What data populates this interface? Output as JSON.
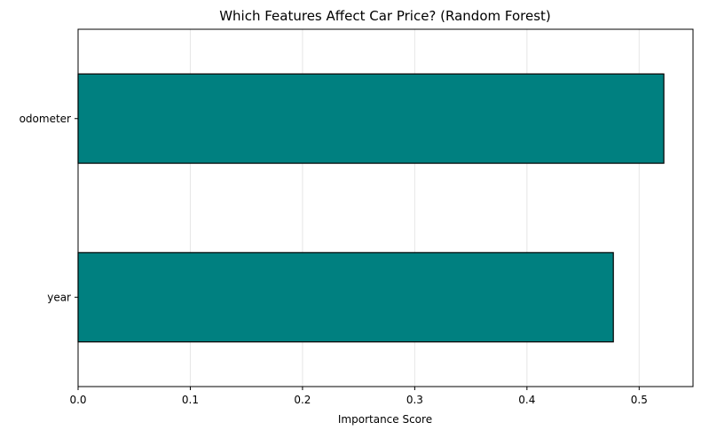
{
  "chart_data": {
    "type": "bar",
    "orientation": "horizontal",
    "title": "Which Features Affect Car Price? (Random Forest)",
    "xlabel": "Importance Score",
    "ylabel": "",
    "categories": [
      "year",
      "odometer"
    ],
    "values": [
      0.477,
      0.522
    ],
    "xlim": [
      0,
      0.548
    ],
    "xticks": [
      0.0,
      0.1,
      0.2,
      0.3,
      0.4,
      0.5
    ],
    "xtick_labels": [
      "0.0",
      "0.1",
      "0.2",
      "0.3",
      "0.4",
      "0.5"
    ],
    "grid": "x-only",
    "legend": "none",
    "bar_color": "#008080",
    "bar_edge_color": "#000000",
    "grid_color": "#e6e6e6"
  }
}
